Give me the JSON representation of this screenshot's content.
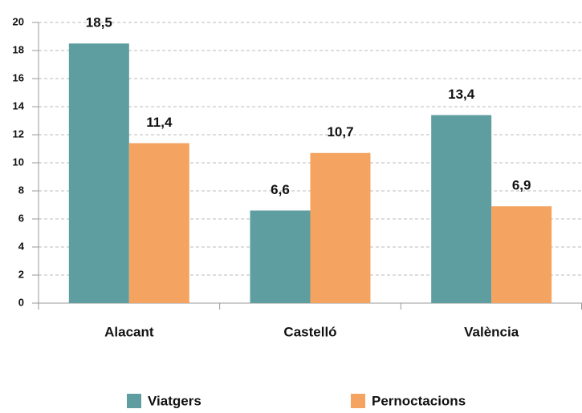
{
  "chart_data": {
    "type": "bar",
    "categories": [
      "Alacant",
      "Castelló",
      "València"
    ],
    "series": [
      {
        "name": "Viatgers",
        "color": "#5f9ea0",
        "values": [
          18.5,
          6.6,
          13.4
        ],
        "value_labels": [
          "18,5",
          "6,6",
          "13,4"
        ]
      },
      {
        "name": "Pernoctacions",
        "color": "#f4a460",
        "values": [
          11.4,
          10.7,
          6.9
        ],
        "value_labels": [
          "11,4",
          "10,7",
          "6,9"
        ]
      }
    ],
    "ylim": [
      0,
      20
    ],
    "yticks": [
      0,
      2,
      4,
      6,
      8,
      10,
      12,
      14,
      16,
      18,
      20
    ],
    "grid": true,
    "legend": "bottom"
  }
}
